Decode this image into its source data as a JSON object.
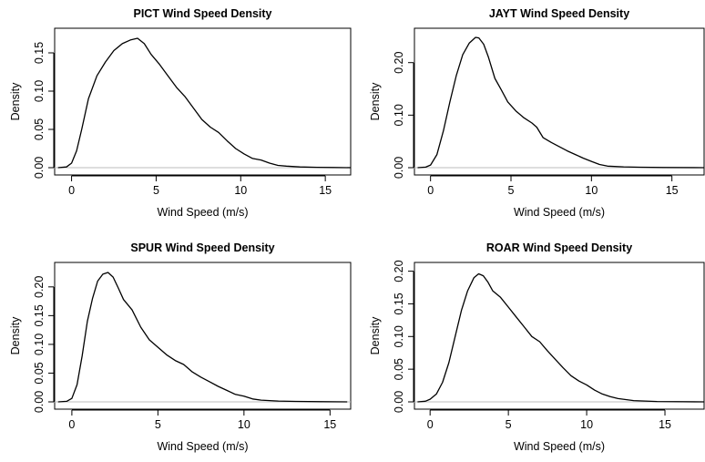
{
  "chart_data": [
    {
      "type": "line",
      "title": "PICT Wind Speed Density",
      "xlabel": "Wind Speed (m/s)",
      "ylabel": "Density",
      "xlim": [
        -1,
        16.5
      ],
      "ylim": [
        0,
        0.175
      ],
      "xticks": [
        0,
        5,
        10,
        15
      ],
      "yticks": [
        0,
        0.05,
        0.1,
        0.15
      ],
      "ytick_labels": [
        "0.00",
        "0.05",
        "0.10",
        "0.15"
      ],
      "baseline": 0,
      "series": [
        {
          "x": [
            -0.8,
            -0.3,
            0,
            0.3,
            0.6,
            1.0,
            1.5,
            2.0,
            2.5,
            3.0,
            3.5,
            3.9,
            4.3,
            4.7,
            5.2,
            5.7,
            6.2,
            6.7,
            7.2,
            7.7,
            8.2,
            8.7,
            9.2,
            9.7,
            10.2,
            10.7,
            11.2,
            11.7,
            12.2,
            12.7,
            13.5,
            14.5,
            15.5,
            16.5
          ],
          "y": [
            0.0,
            0.001,
            0.006,
            0.022,
            0.05,
            0.09,
            0.12,
            0.138,
            0.153,
            0.162,
            0.167,
            0.169,
            0.162,
            0.148,
            0.135,
            0.12,
            0.105,
            0.093,
            0.078,
            0.063,
            0.053,
            0.046,
            0.035,
            0.025,
            0.018,
            0.012,
            0.01,
            0.006,
            0.003,
            0.002,
            0.001,
            0.0005,
            0.0002,
            0.0
          ]
        }
      ]
    },
    {
      "type": "line",
      "title": "JAYT Wind Speed Density",
      "xlabel": "Wind Speed (m/s)",
      "ylabel": "Density",
      "xlim": [
        -1,
        17
      ],
      "ylim": [
        0,
        0.255
      ],
      "xticks": [
        0,
        5,
        10,
        15
      ],
      "yticks": [
        0,
        0.1,
        0.2
      ],
      "ytick_labels": [
        "0.00",
        "0.10",
        "0.20"
      ],
      "baseline": 0,
      "series": [
        {
          "x": [
            -0.8,
            -0.3,
            0,
            0.4,
            0.8,
            1.2,
            1.6,
            2.0,
            2.4,
            2.8,
            3.0,
            3.3,
            3.6,
            4.0,
            4.4,
            4.8,
            5.3,
            5.8,
            6.3,
            6.6,
            7.0,
            7.5,
            8.0,
            8.5,
            9.0,
            9.5,
            10.0,
            10.5,
            11.0,
            12.0,
            13.0,
            14.5,
            17.0
          ],
          "y": [
            0.0,
            0.001,
            0.005,
            0.025,
            0.07,
            0.125,
            0.175,
            0.215,
            0.237,
            0.248,
            0.247,
            0.235,
            0.21,
            0.17,
            0.148,
            0.125,
            0.108,
            0.095,
            0.085,
            0.077,
            0.057,
            0.048,
            0.04,
            0.032,
            0.025,
            0.018,
            0.012,
            0.006,
            0.003,
            0.0015,
            0.0008,
            0.0003,
            0.0
          ]
        }
      ]
    },
    {
      "type": "line",
      "title": "SPUR Wind Speed Density",
      "xlabel": "Wind Speed (m/s)",
      "ylabel": "Density",
      "xlim": [
        -1,
        16.2
      ],
      "ylim": [
        0,
        0.233
      ],
      "xticks": [
        0,
        5,
        10,
        15
      ],
      "yticks": [
        0,
        0.05,
        0.1,
        0.15,
        0.2
      ],
      "ytick_labels": [
        "0.00",
        "0.05",
        "0.10",
        "0.15",
        "0.20"
      ],
      "baseline": 0,
      "series": [
        {
          "x": [
            -0.8,
            -0.3,
            0,
            0.3,
            0.6,
            0.9,
            1.2,
            1.5,
            1.8,
            2.1,
            2.4,
            2.7,
            3.0,
            3.5,
            4.0,
            4.5,
            5.0,
            5.5,
            6.0,
            6.5,
            7.0,
            7.5,
            8.0,
            8.5,
            9.0,
            9.5,
            10.0,
            10.5,
            11.0,
            12.0,
            13.0,
            14.5,
            16.0
          ],
          "y": [
            0.0,
            0.001,
            0.006,
            0.03,
            0.08,
            0.14,
            0.18,
            0.21,
            0.222,
            0.225,
            0.217,
            0.198,
            0.178,
            0.16,
            0.13,
            0.108,
            0.095,
            0.082,
            0.072,
            0.065,
            0.052,
            0.043,
            0.035,
            0.027,
            0.02,
            0.013,
            0.01,
            0.005,
            0.003,
            0.0015,
            0.0008,
            0.0003,
            0.0
          ]
        }
      ]
    },
    {
      "type": "line",
      "title": "ROAR Wind Speed Density",
      "xlabel": "Wind Speed (m/s)",
      "ylabel": "Density",
      "xlim": [
        -1,
        17.5
      ],
      "ylim": [
        0,
        0.205
      ],
      "xticks": [
        0,
        5,
        10,
        15
      ],
      "yticks": [
        0,
        0.05,
        0.1,
        0.15,
        0.2
      ],
      "ytick_labels": [
        "0.00",
        "0.05",
        "0.10",
        "0.15",
        "0.20"
      ],
      "baseline": 0,
      "series": [
        {
          "x": [
            -0.8,
            -0.3,
            0,
            0.4,
            0.8,
            1.2,
            1.6,
            2.0,
            2.4,
            2.8,
            3.1,
            3.4,
            3.7,
            4.0,
            4.5,
            5.0,
            5.5,
            6.0,
            6.5,
            7.0,
            7.5,
            8.0,
            8.5,
            9.0,
            9.5,
            10.0,
            10.5,
            11.0,
            11.5,
            12.0,
            13.0,
            14.5,
            17.5
          ],
          "y": [
            0.0,
            0.001,
            0.004,
            0.012,
            0.03,
            0.06,
            0.1,
            0.14,
            0.17,
            0.19,
            0.196,
            0.193,
            0.183,
            0.17,
            0.16,
            0.145,
            0.13,
            0.115,
            0.1,
            0.092,
            0.078,
            0.065,
            0.052,
            0.04,
            0.032,
            0.026,
            0.018,
            0.012,
            0.008,
            0.005,
            0.002,
            0.0006,
            0.0
          ]
        }
      ]
    }
  ]
}
